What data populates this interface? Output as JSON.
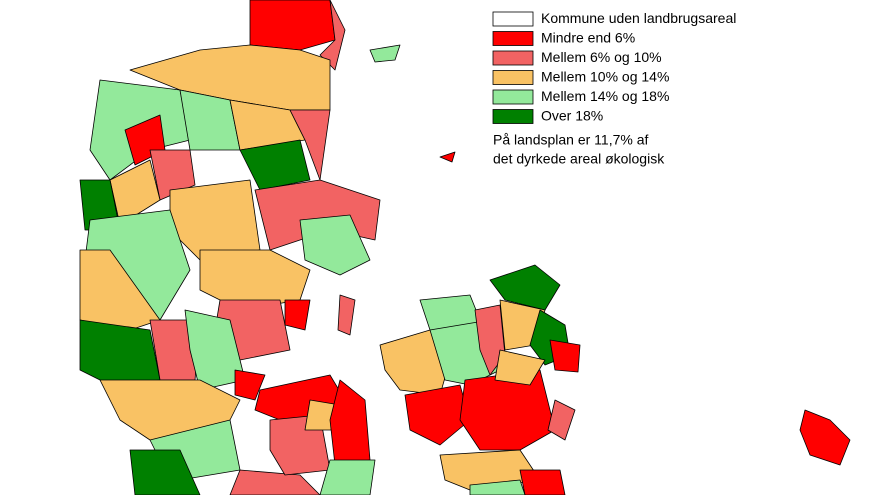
{
  "legend": {
    "items": [
      {
        "label": "Kommune uden landbrugsareal",
        "color": "#ffffff"
      },
      {
        "label": "Mindre end 6%",
        "color": "#ff0000"
      },
      {
        "label": "Mellem 6% og 10%",
        "color": "#f26363"
      },
      {
        "label": "Mellem 10% og 14%",
        "color": "#f9c264"
      },
      {
        "label": "Mellem 14% og 18%",
        "color": "#93e99b"
      },
      {
        "label": "Over 18%",
        "color": "#008000"
      }
    ]
  },
  "note": [
    "På landsplan er 11,7% af",
    "det dyrkede areal økologisk"
  ]
}
